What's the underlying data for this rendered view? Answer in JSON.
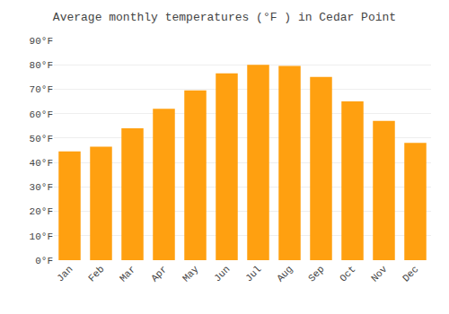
{
  "chart_data": {
    "type": "bar",
    "title": "Average monthly temperatures (°F ) in Cedar Point",
    "categories": [
      "Jan",
      "Feb",
      "Mar",
      "Apr",
      "May",
      "Jun",
      "Jul",
      "Aug",
      "Sep",
      "Oct",
      "Nov",
      "Dec"
    ],
    "values": [
      44.5,
      46.5,
      54,
      62,
      69.5,
      76.5,
      80,
      79.5,
      75,
      65,
      57,
      48
    ],
    "color": "#FFA010",
    "ylim": [
      0,
      90
    ],
    "yticks": [
      {
        "value": 0,
        "label": "0°F"
      },
      {
        "value": 10,
        "label": "10°F"
      },
      {
        "value": 20,
        "label": "20°F"
      },
      {
        "value": 30,
        "label": "30°F"
      },
      {
        "value": 40,
        "label": "40°F"
      },
      {
        "value": 50,
        "label": "50°F"
      },
      {
        "value": 60,
        "label": "60°F"
      },
      {
        "value": 70,
        "label": "70°F"
      },
      {
        "value": 80,
        "label": "80°F"
      },
      {
        "value": 90,
        "label": "90°F"
      }
    ],
    "grid": true
  }
}
